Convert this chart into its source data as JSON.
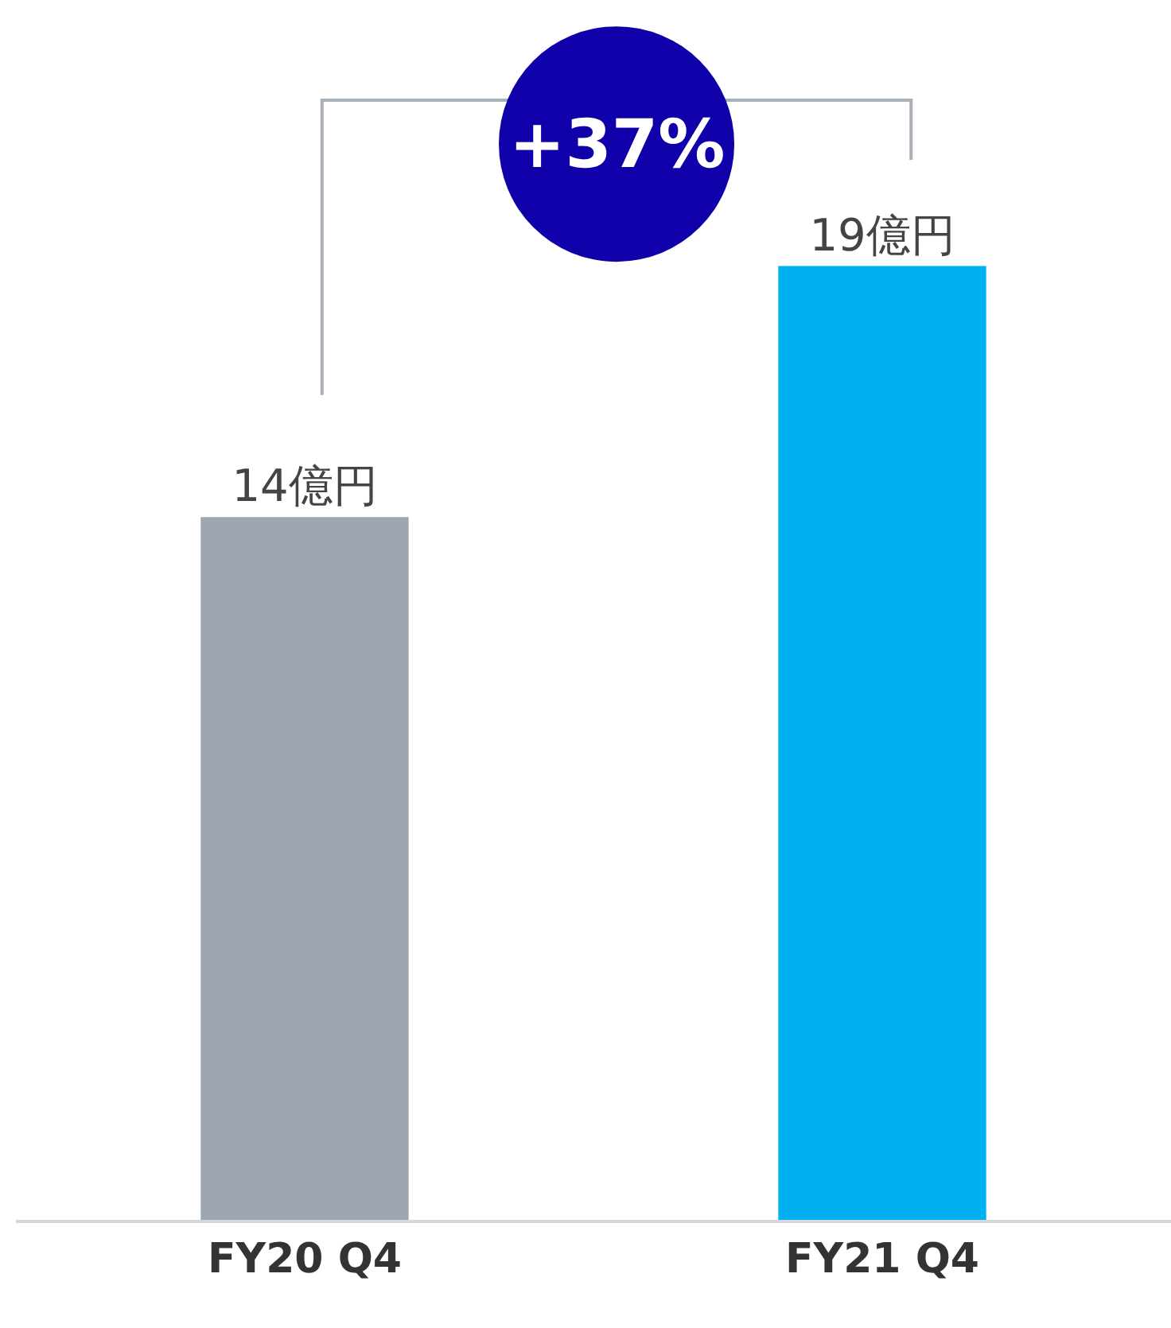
{
  "chart_data": {
    "type": "bar",
    "categories": [
      "FY20 Q4",
      "FY21 Q4"
    ],
    "values": [
      14,
      19
    ],
    "colors": [
      "#9ea7b1",
      "#00b0f0"
    ],
    "value_labels": [
      "14億円",
      "19億円"
    ],
    "ylim": [
      0,
      24.3
    ],
    "annotations": [
      "+37%"
    ]
  }
}
